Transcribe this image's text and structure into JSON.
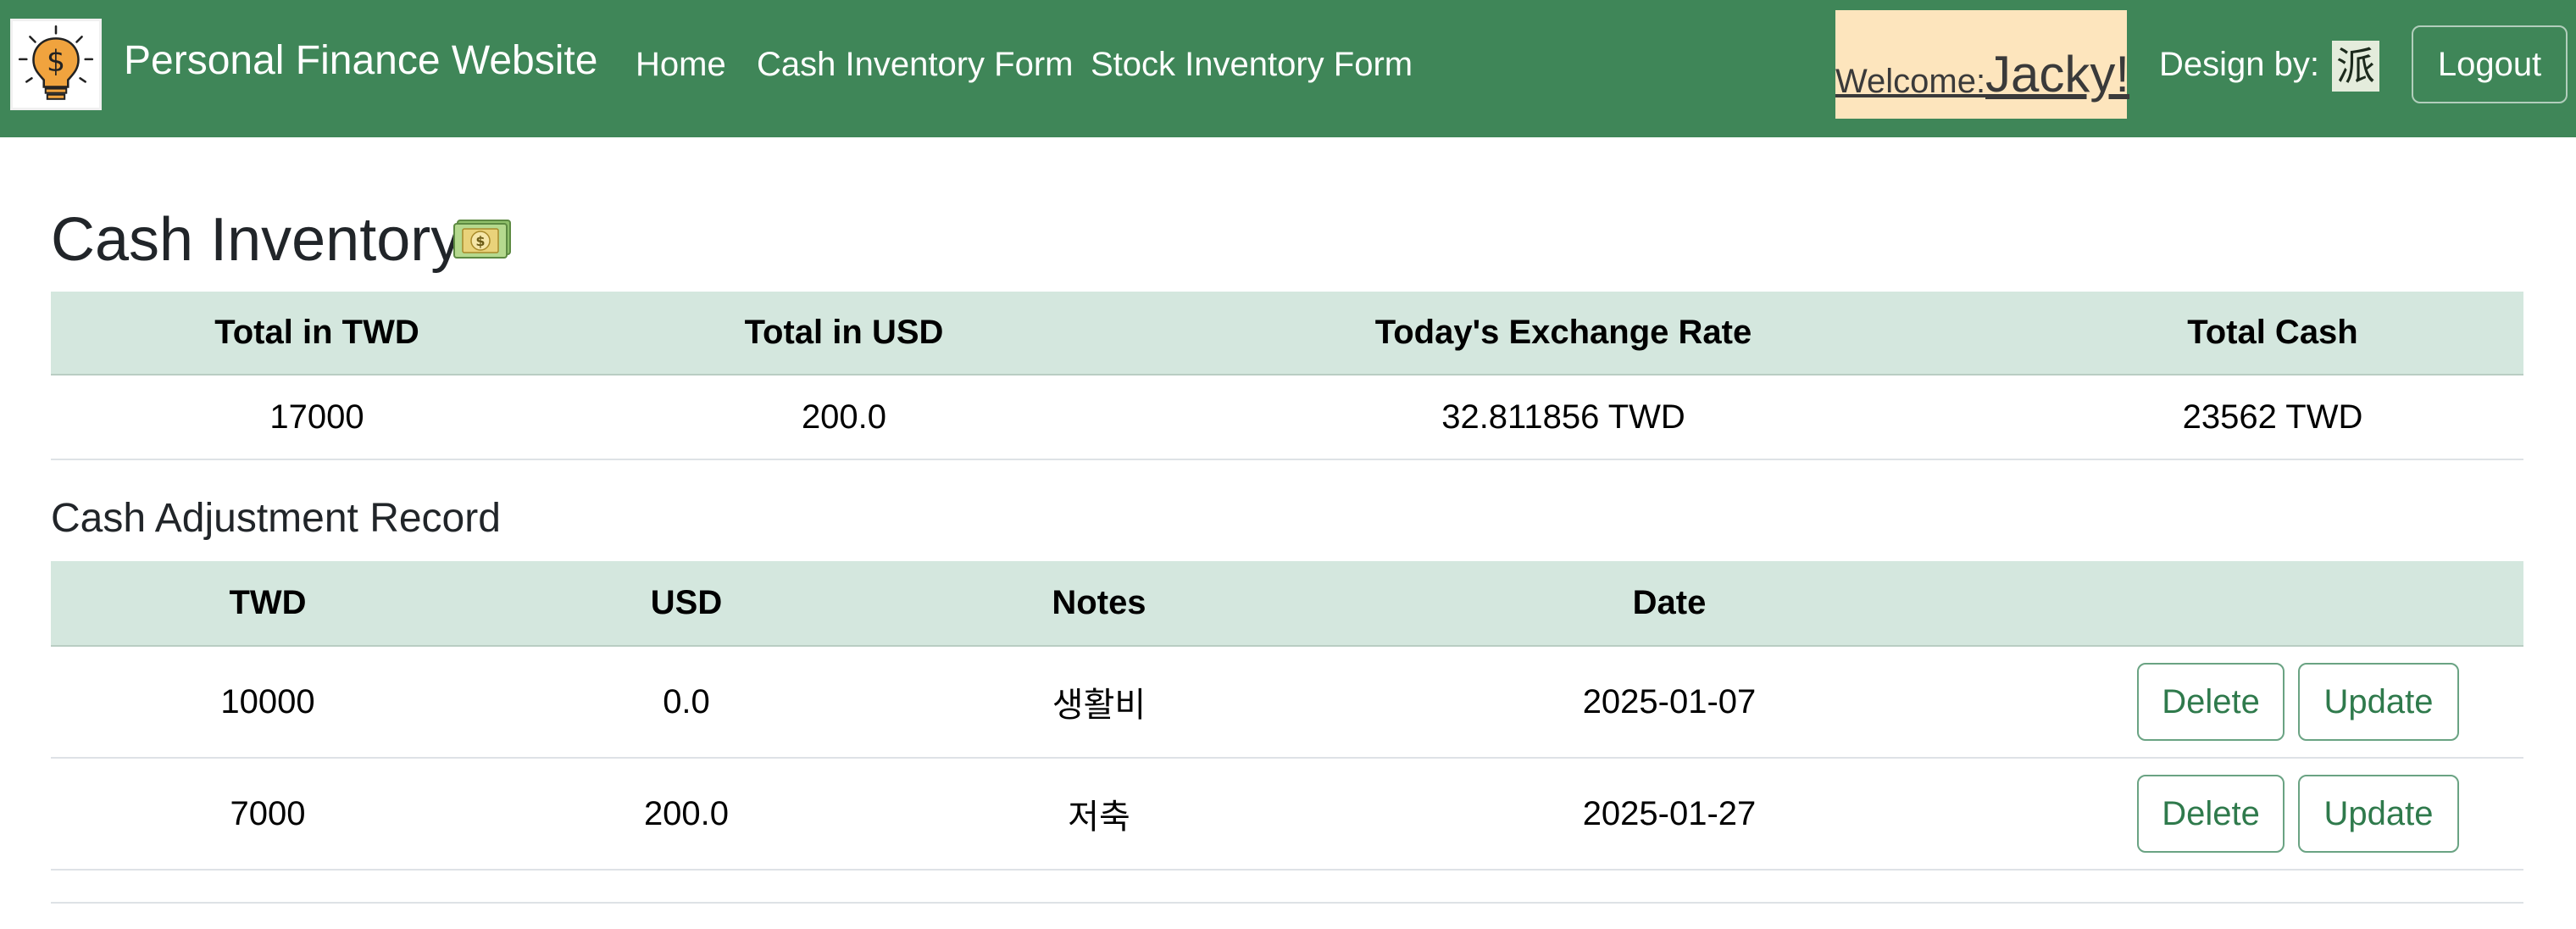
{
  "navbar": {
    "brand": "Personal Finance Website",
    "links": [
      "Home",
      "Cash Inventory Form",
      "Stock Inventory Form"
    ],
    "welcome_prefix": "Welcome:",
    "welcome_name": "Jacky!",
    "design_by_label": "Design by:",
    "designer_badge": "派",
    "logout_label": "Logout",
    "logo_icon": "lightbulb-dollar-icon",
    "colors": {
      "bar": "#3f8658",
      "welcome_bg": "#fde5bd"
    }
  },
  "page": {
    "title": "Cash Inventory",
    "title_icon": "money-bill-icon"
  },
  "summary": {
    "headers": [
      "Total in TWD",
      "Total in USD",
      "Today's Exchange Rate",
      "Total Cash"
    ],
    "row": [
      "17000",
      "200.0",
      "32.811856 TWD",
      "23562 TWD"
    ]
  },
  "adjustments": {
    "title": "Cash Adjustment Record",
    "headers": [
      "TWD",
      "USD",
      "Notes",
      "Date",
      ""
    ],
    "rows": [
      {
        "twd": "10000",
        "usd": "0.0",
        "notes": "생활비",
        "date": "2025-01-07"
      },
      {
        "twd": "7000",
        "usd": "200.0",
        "notes": "저축",
        "date": "2025-01-27"
      }
    ],
    "delete_label": "Delete",
    "update_label": "Update",
    "header_color": "#d4e7de"
  }
}
